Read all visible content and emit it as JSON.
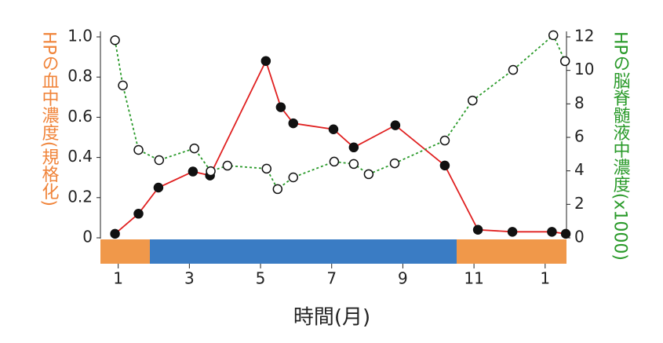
{
  "chart_data": {
    "type": "line",
    "y_label": "HPの血中濃度(規格化)",
    "y2_label": "HPの脳脊髄液中濃度(x1000)",
    "x_label": "時間(月)",
    "xlim": [
      0.5,
      13.6
    ],
    "xticks": [
      1,
      3,
      5,
      7,
      9,
      11,
      {
        "value": 13,
        "label": "1"
      }
    ],
    "ylim": [
      0,
      1
    ],
    "yticks": [
      {
        "value": 0,
        "label": "0"
      },
      {
        "value": 0.2,
        "label": "0.2"
      },
      {
        "value": 0.4,
        "label": "0.4"
      },
      {
        "value": 0.6,
        "label": "0.6"
      },
      {
        "value": 0.8,
        "label": "0.8"
      },
      {
        "value": 1,
        "label": "1.0"
      }
    ],
    "y2lim": [
      0,
      12
    ],
    "y2ticks": [
      0,
      2,
      4,
      6,
      8,
      10,
      12
    ],
    "series": [
      {
        "name": "HPの血中濃度",
        "color": "#e02020",
        "axis": "y",
        "x": [
          0.91,
          1.57,
          2.13,
          3.1,
          3.58,
          5.15,
          5.57,
          5.92,
          7.05,
          7.62,
          8.79,
          10.18,
          11.11,
          12.08,
          13.19,
          13.58
        ],
        "values": [
          0.02,
          0.12,
          0.25,
          0.33,
          0.31,
          0.88,
          0.65,
          0.57,
          0.54,
          0.45,
          0.56,
          0.36,
          0.04,
          0.03,
          0.03,
          0.02
        ]
      },
      {
        "name": "HPの脳脊髄液中濃度",
        "color": "#2a9a2a",
        "axis": "y2",
        "x": [
          0.91,
          1.13,
          1.57,
          2.15,
          3.14,
          3.6,
          4.07,
          5.17,
          5.48,
          5.92,
          7.07,
          7.62,
          8.04,
          8.77,
          10.18,
          10.96,
          12.1,
          13.23,
          13.56
        ],
        "values": [
          11.8,
          9.1,
          5.25,
          4.64,
          5.34,
          3.98,
          4.31,
          4.13,
          2.91,
          3.61,
          4.55,
          4.41,
          3.8,
          4.45,
          5.81,
          8.2,
          10.03,
          12.1,
          10.55
        ]
      }
    ]
  }
}
